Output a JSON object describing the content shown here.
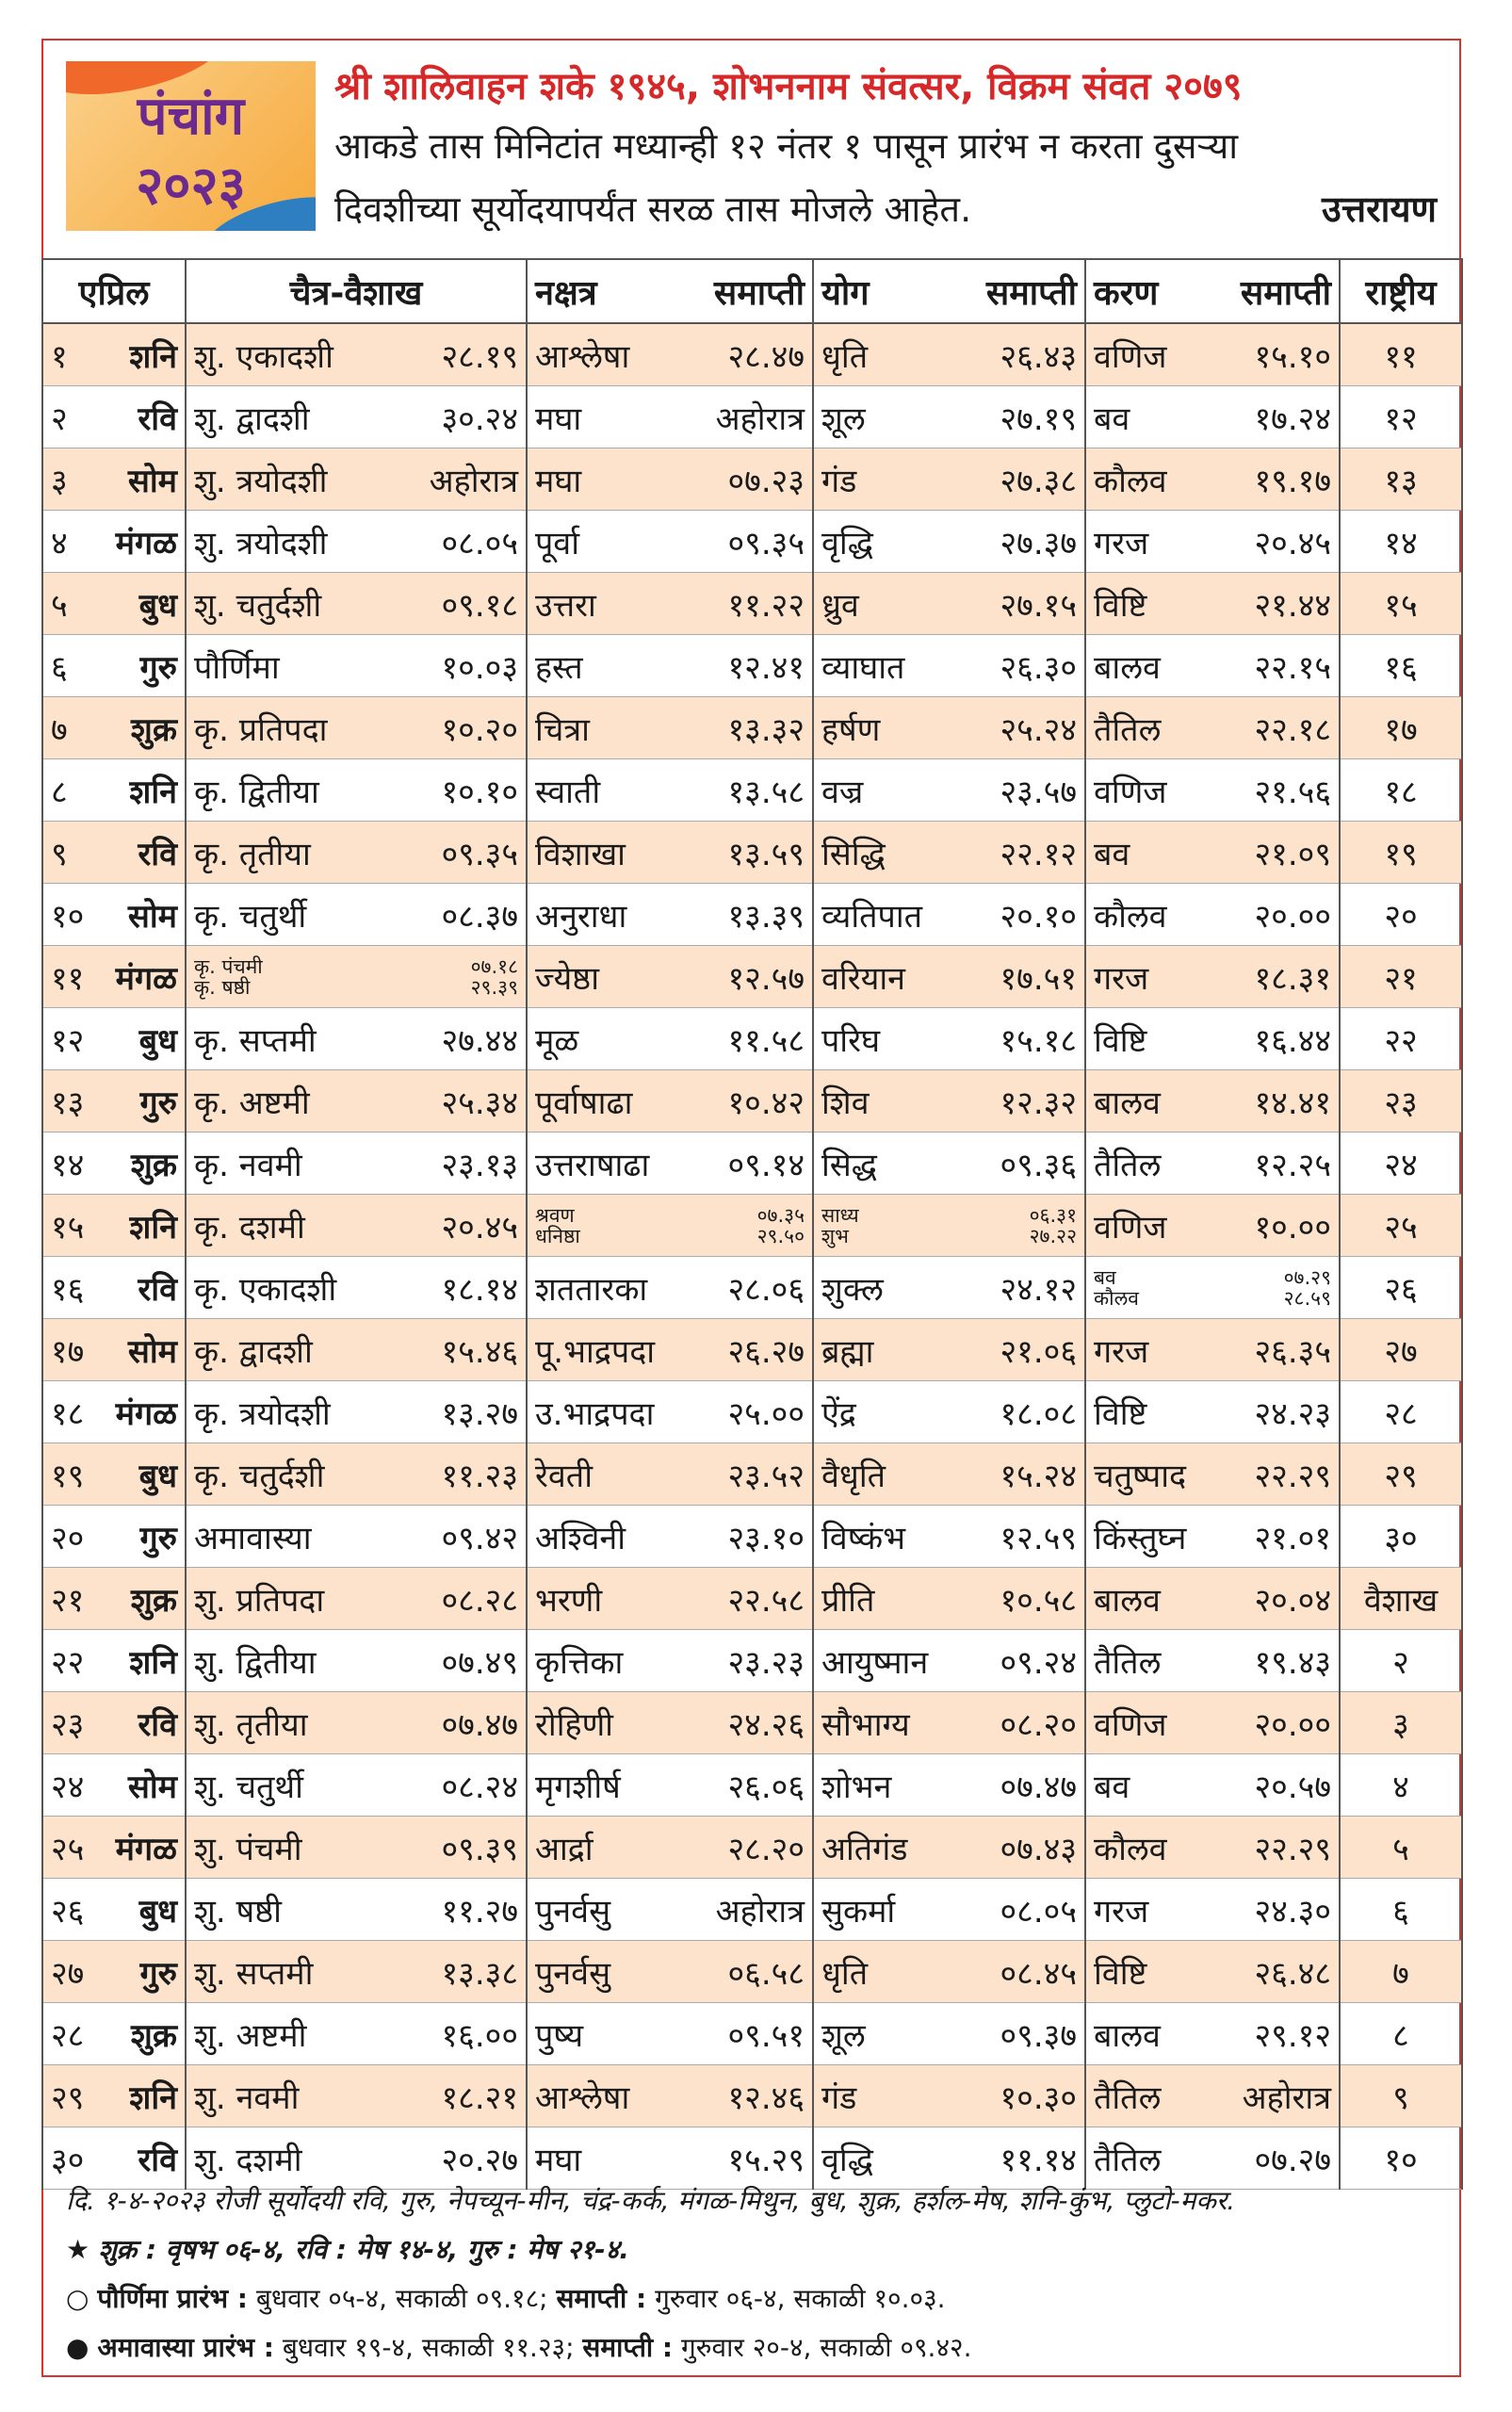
{
  "header": {
    "logo_title": "पंचांग",
    "logo_year": "२०२३",
    "title": "श्री शालिवाहन शके १९४५, शोभननाम संवत्सर, विक्रम संवत २०७९",
    "desc_line1": "आकडे तास मिनिटांत मध्यान्ही १२ नंतर १ पासून प्रारंभ न करता दुसऱ्या",
    "desc_line2": "दिवशीच्या सूर्योदयापर्यंत सरळ तास मोजले आहेत.",
    "ayan": "उत्तरायण"
  },
  "table": {
    "columns": [
      "एप्रिल",
      "चैत्र-वैशाख",
      "नक्षत्र",
      "समाप्ती",
      "योग",
      "समाप्ती",
      "करण",
      "समाप्ती",
      "राष्ट्रीय"
    ],
    "rows": [
      {
        "date": "१",
        "day": "शनि",
        "tithi": "शु. एकादशी",
        "tithi_end": "२८.१९",
        "nakshatra": "आश्लेषा",
        "nakshatra_end": "२८.४७",
        "yoga": "धृति",
        "yoga_end": "२६.४३",
        "karan": "वणिज",
        "karan_end": "१५.१०",
        "national": "११"
      },
      {
        "date": "२",
        "day": "रवि",
        "tithi": "शु. द्वादशी",
        "tithi_end": "३०.२४",
        "nakshatra": "मघा",
        "nakshatra_end": "अहोरात्र",
        "yoga": "शूल",
        "yoga_end": "२७.१९",
        "karan": "बव",
        "karan_end": "१७.२४",
        "national": "१२"
      },
      {
        "date": "३",
        "day": "सोम",
        "tithi": "शु. त्रयोदशी",
        "tithi_end": "अहोरात्र",
        "nakshatra": "मघा",
        "nakshatra_end": "०७.२३",
        "yoga": "गंड",
        "yoga_end": "२७.३८",
        "karan": "कौलव",
        "karan_end": "१९.१७",
        "national": "१३"
      },
      {
        "date": "४",
        "day": "मंगळ",
        "tithi": "शु. त्रयोदशी",
        "tithi_end": "०८.०५",
        "nakshatra": "पूर्वा",
        "nakshatra_end": "०९.३५",
        "yoga": "वृद्धि",
        "yoga_end": "२७.३७",
        "karan": "गरज",
        "karan_end": "२०.४५",
        "national": "१४"
      },
      {
        "date": "५",
        "day": "बुध",
        "tithi": "शु. चतुर्दशी",
        "tithi_end": "०९.१८",
        "nakshatra": "उत्तरा",
        "nakshatra_end": "११.२२",
        "yoga": "ध्रुव",
        "yoga_end": "२७.१५",
        "karan": "विष्टि",
        "karan_end": "२१.४४",
        "national": "१५"
      },
      {
        "date": "६",
        "day": "गुरु",
        "tithi": "पौर्णिमा",
        "tithi_end": "१०.०३",
        "nakshatra": "हस्त",
        "nakshatra_end": "१२.४१",
        "yoga": "व्याघात",
        "yoga_end": "२६.३०",
        "karan": "बालव",
        "karan_end": "२२.१५",
        "national": "१६"
      },
      {
        "date": "७",
        "day": "शुक्र",
        "tithi": "कृ. प्रतिपदा",
        "tithi_end": "१०.२०",
        "nakshatra": "चित्रा",
        "nakshatra_end": "१३.३२",
        "yoga": "हर्षण",
        "yoga_end": "२५.२४",
        "karan": "तैतिल",
        "karan_end": "२२.१८",
        "national": "१७"
      },
      {
        "date": "८",
        "day": "शनि",
        "tithi": "कृ. द्वितीया",
        "tithi_end": "१०.१०",
        "nakshatra": "स्वाती",
        "nakshatra_end": "१३.५८",
        "yoga": "वज्र",
        "yoga_end": "२३.५७",
        "karan": "वणिज",
        "karan_end": "२१.५६",
        "national": "१८"
      },
      {
        "date": "९",
        "day": "रवि",
        "tithi": "कृ. तृतीया",
        "tithi_end": "०९.३५",
        "nakshatra": "विशाखा",
        "nakshatra_end": "१३.५९",
        "yoga": "सिद्धि",
        "yoga_end": "२२.१२",
        "karan": "बव",
        "karan_end": "२१.०९",
        "national": "१९"
      },
      {
        "date": "१०",
        "day": "सोम",
        "tithi": "कृ. चतुर्थी",
        "tithi_end": "०८.३७",
        "nakshatra": "अनुराधा",
        "nakshatra_end": "१३.३९",
        "yoga": "व्यतिपात",
        "yoga_end": "२०.१०",
        "karan": "कौलव",
        "karan_end": "२०.००",
        "national": "२०"
      },
      {
        "date": "११",
        "day": "मंगळ",
        "tithi": [
          "कृ. पंचमी",
          "कृ. षष्ठी"
        ],
        "tithi_end": [
          "०७.१८",
          "२९.३९"
        ],
        "nakshatra": "ज्येष्ठा",
        "nakshatra_end": "१२.५७",
        "yoga": "वरियान",
        "yoga_end": "१७.५१",
        "karan": "गरज",
        "karan_end": "१८.३१",
        "national": "२१"
      },
      {
        "date": "१२",
        "day": "बुध",
        "tithi": "कृ. सप्तमी",
        "tithi_end": "२७.४४",
        "nakshatra": "मूळ",
        "nakshatra_end": "११.५८",
        "yoga": "परिघ",
        "yoga_end": "१५.१८",
        "karan": "विष्टि",
        "karan_end": "१६.४४",
        "national": "२२"
      },
      {
        "date": "१३",
        "day": "गुरु",
        "tithi": "कृ. अष्टमी",
        "tithi_end": "२५.३४",
        "nakshatra": "पूर्वाषाढा",
        "nakshatra_end": "१०.४२",
        "yoga": "शिव",
        "yoga_end": "१२.३२",
        "karan": "बालव",
        "karan_end": "१४.४१",
        "national": "२३"
      },
      {
        "date": "१४",
        "day": "शुक्र",
        "tithi": "कृ. नवमी",
        "tithi_end": "२३.१३",
        "nakshatra": "उत्तराषाढा",
        "nakshatra_end": "०९.१४",
        "yoga": "सिद्ध",
        "yoga_end": "०९.३६",
        "karan": "तैतिल",
        "karan_end": "१२.२५",
        "national": "२४"
      },
      {
        "date": "१५",
        "day": "शनि",
        "tithi": "कृ. दशमी",
        "tithi_end": "२०.४५",
        "nakshatra": [
          "श्रवण",
          "धनिष्ठा"
        ],
        "nakshatra_end": [
          "०७.३५",
          "२९.५०"
        ],
        "yoga": [
          "साध्य",
          "शुभ"
        ],
        "yoga_end": [
          "०६.३१",
          "२७.२२"
        ],
        "karan": "वणिज",
        "karan_end": "१०.००",
        "national": "२५"
      },
      {
        "date": "१६",
        "day": "रवि",
        "tithi": "कृ. एकादशी",
        "tithi_end": "१८.१४",
        "nakshatra": "शततारका",
        "nakshatra_end": "२८.०६",
        "yoga": "शुक्ल",
        "yoga_end": "२४.१२",
        "karan": [
          "बव",
          "कौलव"
        ],
        "karan_end": [
          "०७.२९",
          "२८.५९"
        ],
        "national": "२६"
      },
      {
        "date": "१७",
        "day": "सोम",
        "tithi": "कृ. द्वादशी",
        "tithi_end": "१५.४६",
        "nakshatra": "पू.भाद्रपदा",
        "nakshatra_end": "२६.२७",
        "yoga": "ब्रह्मा",
        "yoga_end": "२१.०६",
        "karan": "गरज",
        "karan_end": "२६.३५",
        "national": "२७"
      },
      {
        "date": "१८",
        "day": "मंगळ",
        "tithi": "कृ. त्रयोदशी",
        "tithi_end": "१३.२७",
        "nakshatra": "उ.भाद्रपदा",
        "nakshatra_end": "२५.००",
        "yoga": "ऐंद्र",
        "yoga_end": "१८.०८",
        "karan": "विष्टि",
        "karan_end": "२४.२३",
        "national": "२८"
      },
      {
        "date": "१९",
        "day": "बुध",
        "tithi": "कृ. चतुर्दशी",
        "tithi_end": "११.२३",
        "nakshatra": "रेवती",
        "nakshatra_end": "२३.५२",
        "yoga": "वैधृति",
        "yoga_end": "१५.२४",
        "karan": "चतुष्पाद",
        "karan_end": "२२.२९",
        "national": "२९"
      },
      {
        "date": "२०",
        "day": "गुरु",
        "tithi": "अमावास्या",
        "tithi_end": "०९.४२",
        "nakshatra": "अश्विनी",
        "nakshatra_end": "२३.१०",
        "yoga": "विष्कंभ",
        "yoga_end": "१२.५९",
        "karan": "किंस्तुघ्न",
        "karan_end": "२१.०१",
        "national": "३०"
      },
      {
        "date": "२१",
        "day": "शुक्र",
        "tithi": "शु. प्रतिपदा",
        "tithi_end": "०८.२८",
        "nakshatra": "भरणी",
        "nakshatra_end": "२२.५८",
        "yoga": "प्रीति",
        "yoga_end": "१०.५८",
        "karan": "बालव",
        "karan_end": "२०.०४",
        "national": "वैशाख"
      },
      {
        "date": "२२",
        "day": "शनि",
        "tithi": "शु. द्वितीया",
        "tithi_end": "०७.४९",
        "nakshatra": "कृत्तिका",
        "nakshatra_end": "२३.२३",
        "yoga": "आयुष्मान",
        "yoga_end": "०९.२४",
        "karan": "तैतिल",
        "karan_end": "१९.४३",
        "national": "२"
      },
      {
        "date": "२३",
        "day": "रवि",
        "tithi": "शु. तृतीया",
        "tithi_end": "०७.४७",
        "nakshatra": "रोहिणी",
        "nakshatra_end": "२४.२६",
        "yoga": "सौभाग्य",
        "yoga_end": "०८.२०",
        "karan": "वणिज",
        "karan_end": "२०.००",
        "national": "३"
      },
      {
        "date": "२४",
        "day": "सोम",
        "tithi": "शु. चतुर्थी",
        "tithi_end": "०८.२४",
        "nakshatra": "मृगशीर्ष",
        "nakshatra_end": "२६.०६",
        "yoga": "शोभन",
        "yoga_end": "०७.४७",
        "karan": "बव",
        "karan_end": "२०.५७",
        "national": "४"
      },
      {
        "date": "२५",
        "day": "मंगळ",
        "tithi": "शु. पंचमी",
        "tithi_end": "०९.३९",
        "nakshatra": "आर्द्रा",
        "nakshatra_end": "२८.२०",
        "yoga": "अतिगंड",
        "yoga_end": "०७.४३",
        "karan": "कौलव",
        "karan_end": "२२.२९",
        "national": "५"
      },
      {
        "date": "२६",
        "day": "बुध",
        "tithi": "शु. षष्ठी",
        "tithi_end": "११.२७",
        "nakshatra": "पुनर्वसु",
        "nakshatra_end": "अहोरात्र",
        "yoga": "सुकर्मा",
        "yoga_end": "०८.०५",
        "karan": "गरज",
        "karan_end": "२४.३०",
        "national": "६"
      },
      {
        "date": "२७",
        "day": "गुरु",
        "tithi": "शु. सप्तमी",
        "tithi_end": "१३.३८",
        "nakshatra": "पुनर्वसु",
        "nakshatra_end": "०६.५८",
        "yoga": "धृति",
        "yoga_end": "०८.४५",
        "karan": "विष्टि",
        "karan_end": "२६.४८",
        "national": "७"
      },
      {
        "date": "२८",
        "day": "शुक्र",
        "tithi": "शु. अष्टमी",
        "tithi_end": "१६.००",
        "nakshatra": "पुष्य",
        "nakshatra_end": "०९.५१",
        "yoga": "शूल",
        "yoga_end": "०९.३७",
        "karan": "बालव",
        "karan_end": "२९.१२",
        "national": "८"
      },
      {
        "date": "२९",
        "day": "शनि",
        "tithi": "शु. नवमी",
        "tithi_end": "१८.२१",
        "nakshatra": "आश्लेषा",
        "nakshatra_end": "१२.४६",
        "yoga": "गंड",
        "yoga_end": "१०.३०",
        "karan": "तैतिल",
        "karan_end": "अहोरात्र",
        "national": "९"
      },
      {
        "date": "३०",
        "day": "रवि",
        "tithi": "शु. दशमी",
        "tithi_end": "२०.२७",
        "nakshatra": "मघा",
        "nakshatra_end": "१५.२९",
        "yoga": "वृद्धि",
        "yoga_end": "११.१४",
        "karan": "तैतिल",
        "karan_end": "०७.२७",
        "national": "१०"
      }
    ]
  },
  "footer": {
    "planets": "दि. १-४-२०२३ रोजी सूर्योदयी रवि, गुरु, नेपच्यून-मीन, चंद्र-कर्क, मंगळ-मिथुन, बुध, शुक्र, हर्शल-मेष, शनि-कुंभ, प्लुटो-मकर.",
    "transits": "शुक्र : वृषभ ०६-४, रवि : मेष १४-४, गुरु : मेष २१-४.",
    "purnima": {
      "label": "पौर्णिमा प्रारंभ :",
      "start": "बुधवार ०५-४, सकाळी ०९.१८;",
      "end_label": "समाप्ती :",
      "end": "गुरुवार ०६-४, सकाळी १०.०३."
    },
    "amavasya": {
      "label": "अमावास्या प्रारंभ :",
      "start": "बुधवार १९-४, सकाळी ११.२३;",
      "end_label": "समाप्ती :",
      "end": "गुरुवार २०-४, सकाळी ०९.४२."
    }
  }
}
